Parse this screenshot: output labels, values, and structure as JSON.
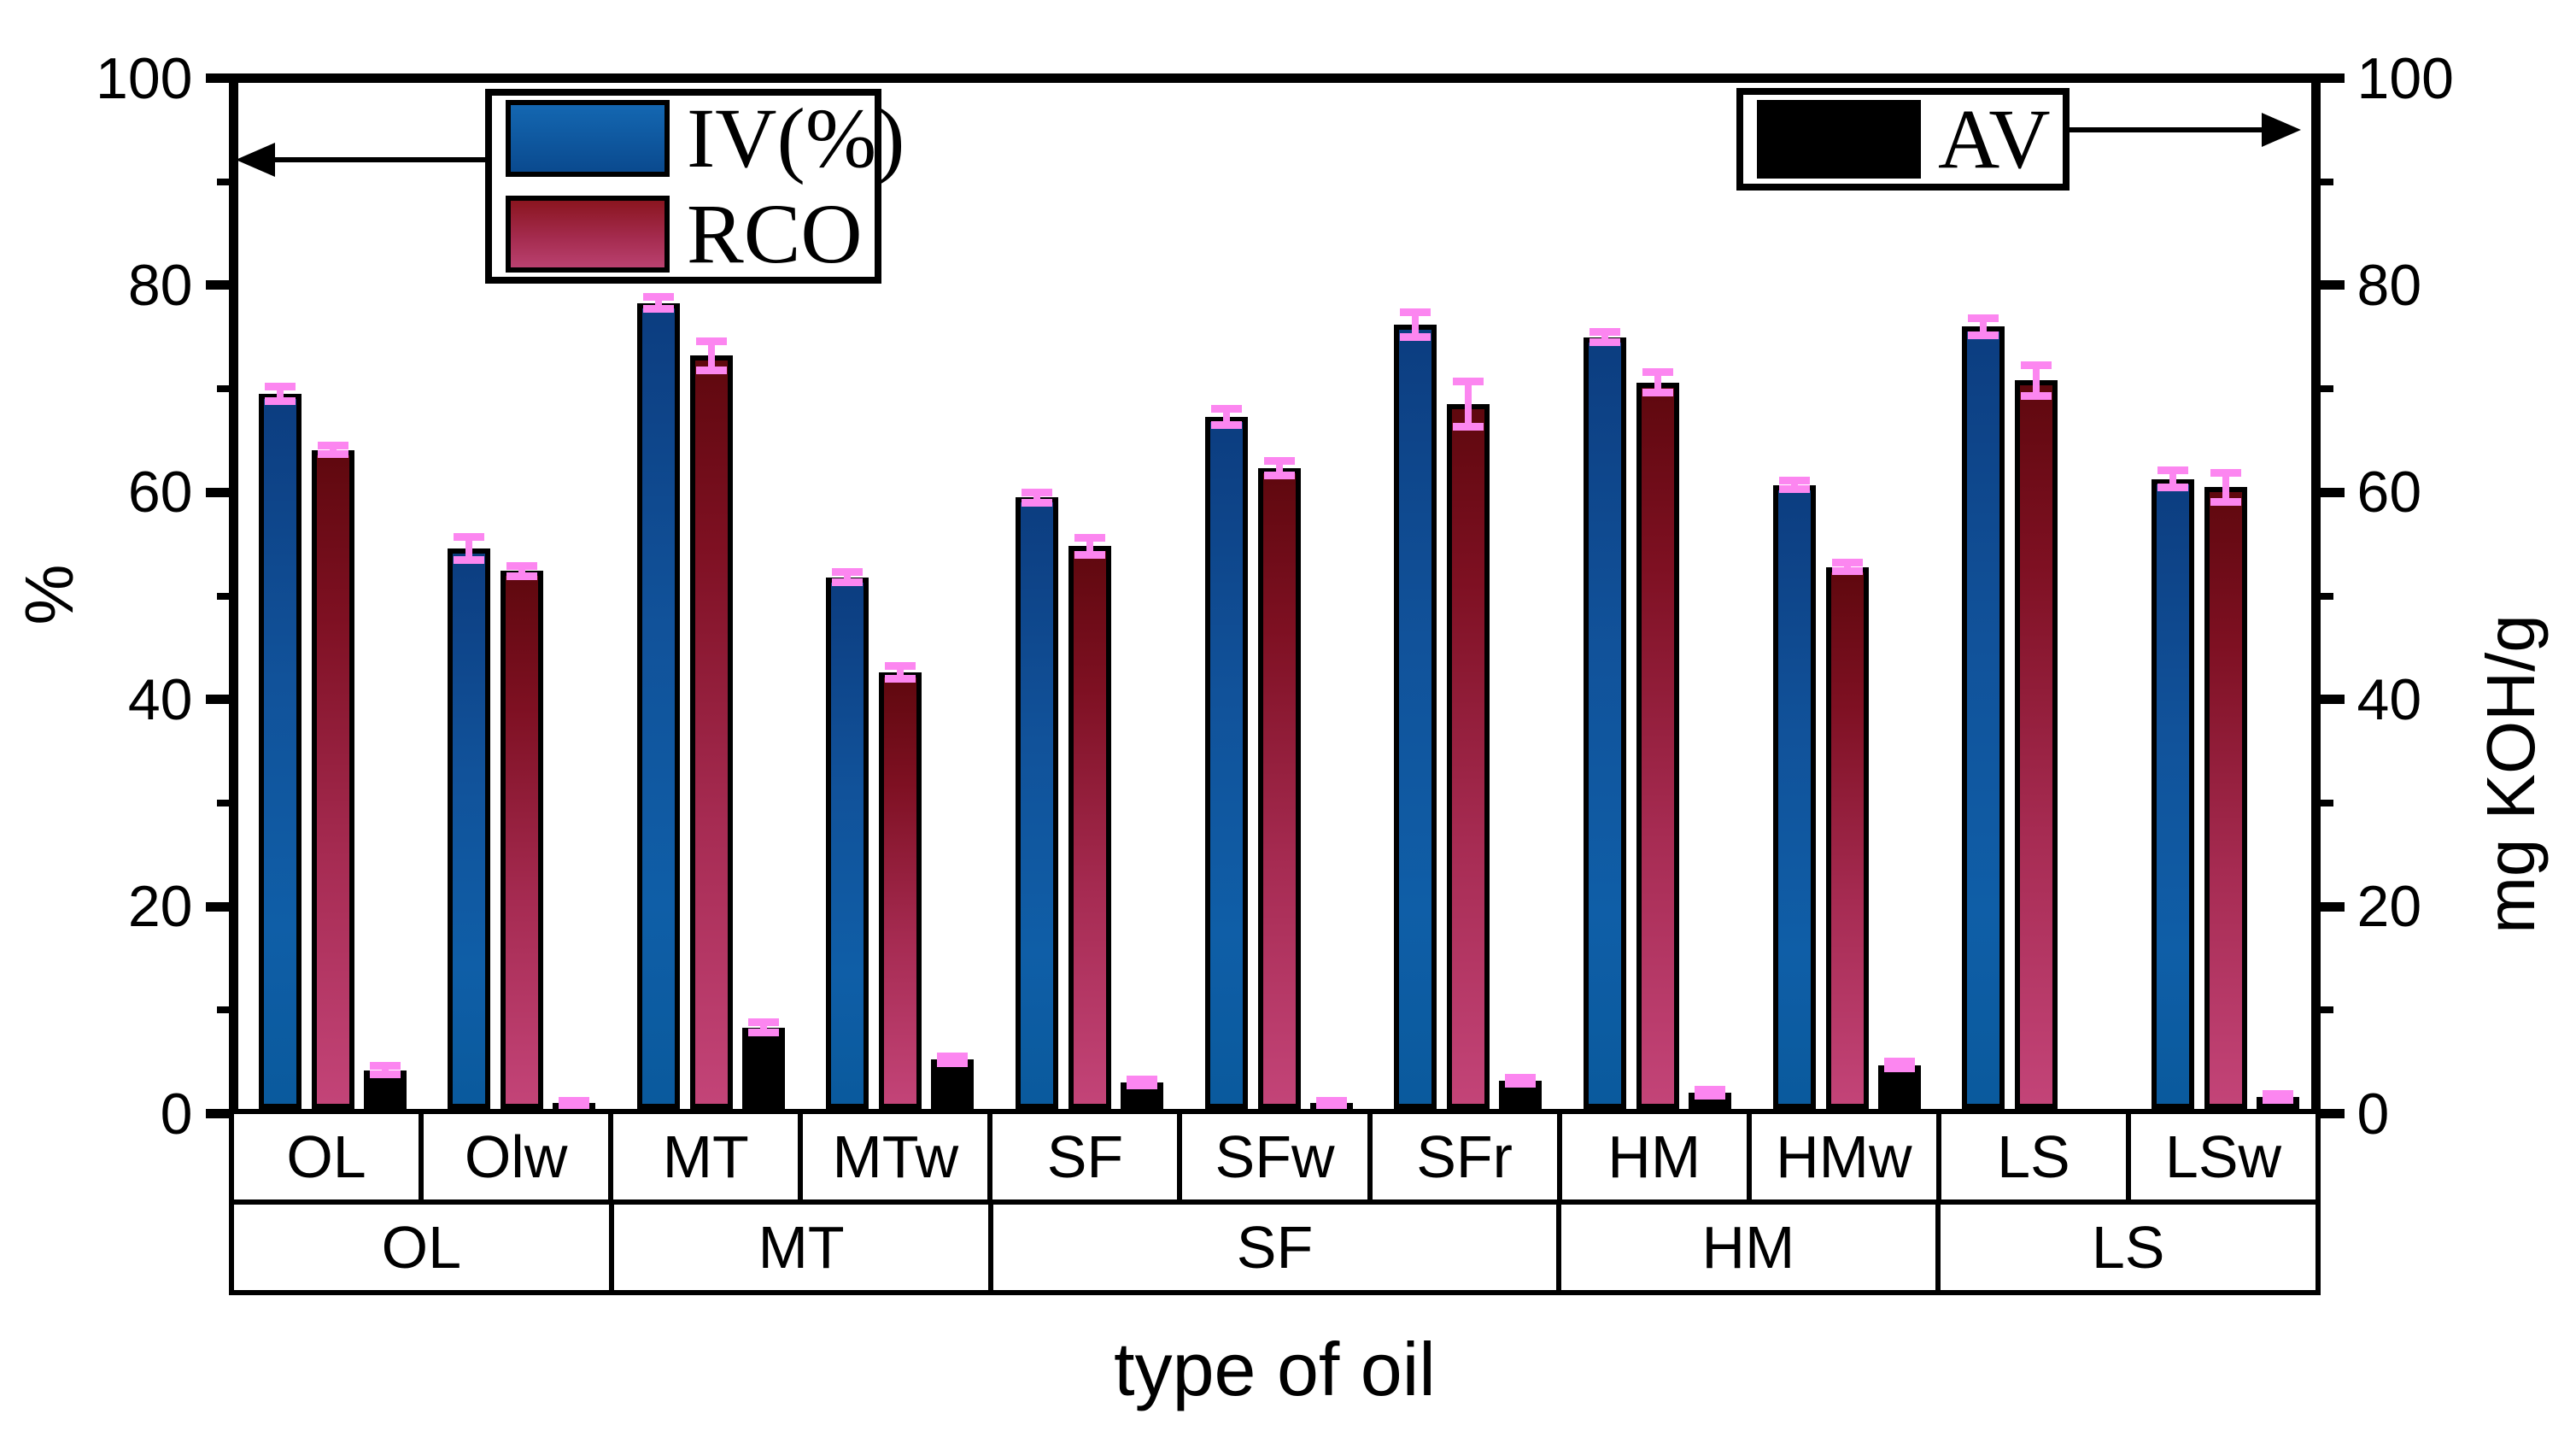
{
  "title": "type of oil",
  "left_axis": {
    "label": "%",
    "tick_labels": [
      "0",
      "20",
      "40",
      "60",
      "80",
      "100"
    ]
  },
  "right_axis": {
    "label": "mg KOH/g",
    "tick_labels": [
      "0",
      "20",
      "40",
      "60",
      "80",
      "100"
    ]
  },
  "legend_left": {
    "items": [
      {
        "label": "IV(%)"
      },
      {
        "label": "RCO"
      }
    ]
  },
  "legend_right": {
    "label": "AV"
  },
  "colors": {
    "iv_top": "#0c3d80",
    "iv_bottom": "#0a5a9d",
    "rco_top": "#5f080e",
    "rco_bottom": "#c34478",
    "av": "#000000",
    "error_bar": "#fc86f0",
    "axis": "#000000"
  },
  "chart_data": {
    "type": "bar",
    "title": "type of oil",
    "xlabel": "type of oil",
    "ylabel_left": "%",
    "ylabel_right": "mg KOH/g",
    "ylim": [
      0,
      100
    ],
    "yticks_major": [
      0,
      20,
      40,
      60,
      80,
      100
    ],
    "yticks_minor": [
      10,
      30,
      50,
      70,
      90
    ],
    "grid": false,
    "legend_position": "top-left and top-right inside plot",
    "categories": [
      "OL",
      "Olw",
      "MT",
      "MTw",
      "SF",
      "SFw",
      "SFr",
      "HM",
      "HMw",
      "LS",
      "LSw"
    ],
    "group_labels": [
      {
        "label": "OL",
        "span": 2
      },
      {
        "label": "MT",
        "span": 2
      },
      {
        "label": "SF",
        "span": 3
      },
      {
        "label": "HM",
        "span": 2
      },
      {
        "label": "LS",
        "span": 2
      }
    ],
    "series": [
      {
        "name": "IV(%)",
        "axis": "left",
        "values": [
          69.5,
          54.6,
          78.3,
          51.8,
          59.5,
          67.3,
          76.2,
          75.0,
          60.7,
          76.0,
          61.3
        ],
        "errors": [
          0.7,
          1.1,
          0.6,
          0.5,
          0.5,
          0.8,
          1.2,
          0.5,
          0.4,
          0.8,
          0.8
        ]
      },
      {
        "name": "RCO",
        "axis": "left",
        "values": [
          64.1,
          52.4,
          73.2,
          42.6,
          54.8,
          62.3,
          68.5,
          70.6,
          52.8,
          70.8,
          60.5
        ],
        "errors": [
          0.4,
          0.5,
          1.4,
          0.6,
          0.8,
          0.7,
          2.2,
          1.0,
          0.4,
          1.5,
          1.4
        ]
      },
      {
        "name": "AV",
        "axis": "right",
        "values": [
          4.2,
          1.0,
          8.3,
          5.2,
          3.0,
          1.0,
          3.2,
          2.0,
          4.7,
          0,
          1.6
        ],
        "errors": [
          0.4,
          0.2,
          0.5,
          0.3,
          0.3,
          0.2,
          0.3,
          0.3,
          0.3,
          0,
          0.3
        ]
      }
    ]
  }
}
